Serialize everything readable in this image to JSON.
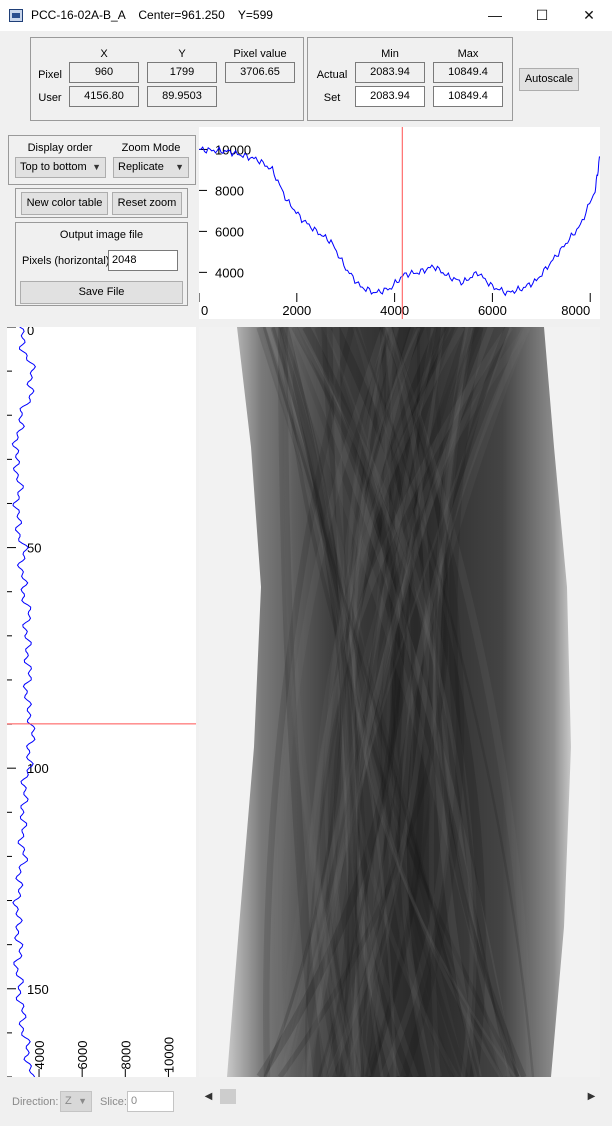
{
  "window": {
    "title": "PCC-16-02A-B_A    Center=961.250    Y=599",
    "minimize_glyph": "—",
    "maximize_glyph": "☐",
    "close_glyph": "✕"
  },
  "coords": {
    "col_x": "X",
    "col_y": "Y",
    "col_pixel_value": "Pixel value",
    "row_pixel": "Pixel",
    "row_user": "User",
    "pixel_x": "960",
    "pixel_y": "1799",
    "pixel_value": "3706.65",
    "user_x": "4156.80",
    "user_y": "89.9503"
  },
  "range": {
    "col_min": "Min",
    "col_max": "Max",
    "row_actual": "Actual",
    "row_set": "Set",
    "actual_min": "2083.94",
    "actual_max": "10849.4",
    "set_min": "2083.94",
    "set_max": "10849.4",
    "autoscale_label": "Autoscale"
  },
  "display": {
    "order_label": "Display order",
    "order_value": "Top to bottom",
    "zoom_label": "Zoom Mode",
    "zoom_value": "Replicate",
    "new_color_table_label": "New color table",
    "reset_zoom_label": "Reset zoom"
  },
  "output": {
    "group_label": "Output image file",
    "pixels_label": "Pixels (horizontal)",
    "pixels_value": "2048",
    "save_label": "Save File"
  },
  "footer": {
    "direction_label": "Direction:",
    "direction_value": "Z",
    "slice_label": "Slice:",
    "slice_value": "0",
    "left_arrow": "◀",
    "right_arrow": "▶"
  },
  "colors": {
    "profile_line": "#0000ff",
    "cursor_line": "#ff5050",
    "image_light": "#f2f2f2",
    "image_dark": "#1a1a1a"
  },
  "chart_data": [
    {
      "type": "line",
      "orientation": "horizontal-profile",
      "title": "",
      "xlabel": "",
      "ylabel": "",
      "x_ticks": [
        "0",
        "2000",
        "4000",
        "6000",
        "8000"
      ],
      "y_ticks": [
        "4000",
        "6000",
        "8000",
        "10000"
      ],
      "xlim": [
        0,
        8200
      ],
      "ylim": [
        2700,
        10900
      ],
      "cursor_x": 4156.8,
      "series": [
        {
          "x": [
            0,
            300,
            600,
            900,
            1200,
            1500,
            1800,
            2100,
            2400,
            2700,
            3000,
            3300,
            3600,
            3900,
            4200,
            4500,
            4800,
            5100,
            5400,
            5700,
            6000,
            6300,
            6600,
            6900,
            7200,
            7500,
            7800,
            8100,
            8200
          ],
          "y": [
            10000,
            9950,
            9900,
            9700,
            9500,
            9000,
            7500,
            6600,
            6000,
            5500,
            4200,
            3300,
            3000,
            3200,
            3900,
            4000,
            4300,
            3800,
            3500,
            4000,
            3300,
            3000,
            3200,
            3600,
            4500,
            5400,
            6300,
            8000,
            9700
          ]
        }
      ]
    },
    {
      "type": "line",
      "orientation": "vertical-profile",
      "title": "",
      "xlabel": "",
      "ylabel": "",
      "x_ticks": [
        "4000",
        "6000",
        "8000",
        "10000"
      ],
      "y_ticks": [
        "0",
        "50",
        "100",
        "150"
      ],
      "xlim": [
        2700,
        11000
      ],
      "ylim": [
        0,
        170
      ],
      "cursor_y": 89.9503,
      "series": [
        {
          "y": [
            0,
            5,
            10,
            15,
            20,
            25,
            30,
            35,
            40,
            45,
            50,
            55,
            60,
            65,
            70,
            75,
            80,
            85,
            90,
            95,
            100,
            105,
            110,
            115,
            120,
            125,
            130,
            135,
            140,
            145,
            150,
            155,
            160,
            165,
            170
          ],
          "x": [
            3100,
            3300,
            3700,
            3600,
            3200,
            3000,
            2900,
            3100,
            3000,
            3000,
            3300,
            3200,
            3300,
            3500,
            3400,
            3500,
            3500,
            3400,
            3700,
            3600,
            3500,
            3300,
            3300,
            3200,
            3300,
            3100,
            3000,
            3000,
            3100,
            3000,
            3100,
            3200,
            3300,
            3500,
            3600
          ]
        }
      ]
    }
  ]
}
